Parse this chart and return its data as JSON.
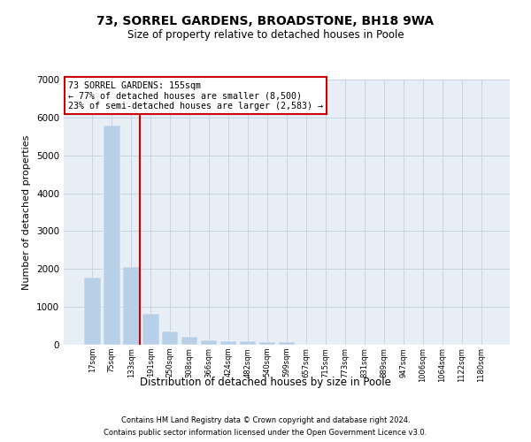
{
  "title1": "73, SORREL GARDENS, BROADSTONE, BH18 9WA",
  "title2": "Size of property relative to detached houses in Poole",
  "xlabel": "Distribution of detached houses by size in Poole",
  "ylabel": "Number of detached properties",
  "bar_color": "#b8cfe8",
  "grid_color": "#c8d4e4",
  "background_color": "#e8eef6",
  "annotation_box_edgecolor": "#cc0000",
  "property_line_color": "#cc0000",
  "categories": [
    "17sqm",
    "75sqm",
    "133sqm",
    "191sqm",
    "250sqm",
    "308sqm",
    "366sqm",
    "424sqm",
    "482sqm",
    "540sqm",
    "599sqm",
    "657sqm",
    "715sqm",
    "773sqm",
    "831sqm",
    "889sqm",
    "947sqm",
    "1006sqm",
    "1064sqm",
    "1122sqm",
    "1180sqm"
  ],
  "values": [
    1780,
    5780,
    2060,
    820,
    360,
    200,
    110,
    95,
    90,
    75,
    60,
    0,
    0,
    0,
    0,
    0,
    0,
    0,
    0,
    0,
    0
  ],
  "property_bin_index": 2,
  "annotation_line1": "73 SORREL GARDENS: 155sqm",
  "annotation_line2": "← 77% of detached houses are smaller (8,500)",
  "annotation_line3": "23% of semi-detached houses are larger (2,583) →",
  "ylim": [
    0,
    7000
  ],
  "yticks": [
    0,
    1000,
    2000,
    3000,
    4000,
    5000,
    6000,
    7000
  ],
  "footnote1": "Contains HM Land Registry data © Crown copyright and database right 2024.",
  "footnote2": "Contains public sector information licensed under the Open Government Licence v3.0."
}
